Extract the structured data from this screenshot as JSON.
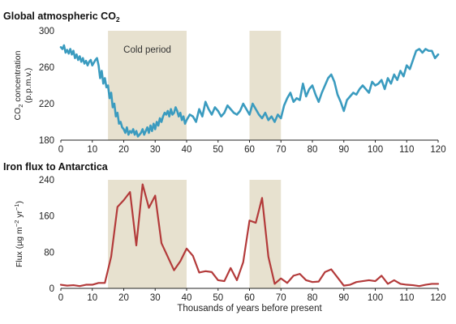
{
  "chart_data": [
    {
      "type": "line",
      "title": "Global atmospheric CO",
      "title_subscript": "2",
      "ylabel_lines": [
        "CO",
        "2",
        " concentration",
        "(p.p.m.v.)"
      ],
      "ylim": [
        180,
        300
      ],
      "yticks": [
        180,
        220,
        260,
        300
      ],
      "xlim": [
        0,
        120
      ],
      "xticks": [
        0,
        10,
        20,
        30,
        40,
        50,
        60,
        70,
        80,
        90,
        100,
        110,
        120
      ],
      "bands": [
        [
          15,
          40
        ],
        [
          60,
          70
        ]
      ],
      "annotation": "Cold period",
      "color": "#3a9bbf",
      "grid": false,
      "series": [
        {
          "x": [
            0,
            0.5,
            1,
            1.5,
            2,
            2.5,
            3,
            3.5,
            4,
            4.5,
            5,
            5.5,
            6,
            6.5,
            7,
            7.5,
            8,
            8.5,
            9,
            9.5,
            10,
            10.5,
            11,
            11.5,
            12,
            12.5,
            13,
            13.5,
            14,
            14.5,
            15,
            15.5,
            16,
            16.5,
            17,
            17.5,
            18,
            18.5,
            19,
            19.5,
            20,
            20.5,
            21,
            21.5,
            22,
            22.5,
            23,
            23.5,
            24,
            24.5,
            25,
            25.5,
            26,
            26.5,
            27,
            27.5,
            28,
            28.5,
            29,
            29.5,
            30,
            30.5,
            31,
            31.5,
            32,
            32.5,
            33,
            33.5,
            34,
            34.5,
            35,
            35.5,
            36,
            36.5,
            37,
            37.5,
            38,
            38.5,
            39,
            39.5,
            40,
            41,
            42,
            43,
            44,
            45,
            46,
            47,
            48,
            49,
            50,
            51,
            52,
            53,
            54,
            55,
            56,
            57,
            58,
            59,
            60,
            61,
            62,
            63,
            64,
            65,
            66,
            67,
            68,
            69,
            70,
            71,
            72,
            73,
            74,
            75,
            76,
            77,
            78,
            79,
            80,
            81,
            82,
            83,
            84,
            85,
            86,
            87,
            88,
            89,
            90,
            91,
            92,
            93,
            94,
            95,
            96,
            97,
            98,
            99,
            100,
            101,
            102,
            103,
            104,
            105,
            106,
            107,
            108,
            109,
            110,
            111,
            112,
            113,
            114,
            115,
            116,
            117,
            118,
            119,
            120
          ],
          "y": [
            282,
            280,
            284,
            276,
            279,
            275,
            280,
            274,
            278,
            270,
            274,
            268,
            272,
            266,
            270,
            264,
            267,
            262,
            266,
            268,
            262,
            265,
            268,
            270,
            262,
            248,
            256,
            242,
            248,
            238,
            240,
            226,
            232,
            216,
            220,
            206,
            210,
            198,
            200,
            194,
            192,
            188,
            194,
            186,
            190,
            188,
            192,
            186,
            190,
            184,
            186,
            188,
            192,
            186,
            190,
            194,
            188,
            196,
            190,
            198,
            192,
            200,
            196,
            204,
            200,
            206,
            210,
            208,
            212,
            206,
            214,
            208,
            210,
            216,
            212,
            206,
            210,
            202,
            206,
            198,
            202,
            208,
            206,
            200,
            214,
            206,
            222,
            214,
            208,
            216,
            212,
            206,
            210,
            218,
            214,
            210,
            208,
            212,
            220,
            214,
            208,
            220,
            214,
            208,
            204,
            210,
            202,
            206,
            200,
            208,
            204,
            218,
            226,
            232,
            222,
            226,
            224,
            242,
            228,
            236,
            240,
            230,
            222,
            232,
            240,
            248,
            252,
            244,
            230,
            222,
            212,
            224,
            228,
            232,
            230,
            236,
            240,
            236,
            232,
            244,
            240,
            242,
            246,
            236,
            248,
            242,
            252,
            246,
            256,
            250,
            262,
            258,
            268,
            278,
            280,
            276,
            280,
            278,
            278,
            270,
            274
          ]
        }
      ]
    },
    {
      "type": "line",
      "title": "Iron flux to Antarctica",
      "ylabel_parts": [
        "Flux (µg m",
        "−2",
        " yr",
        "−1",
        ")"
      ],
      "ylim": [
        0,
        240
      ],
      "yticks": [
        0,
        80,
        160,
        240
      ],
      "xlim": [
        0,
        120
      ],
      "xticks": [
        0,
        10,
        20,
        30,
        40,
        50,
        60,
        70,
        80,
        90,
        100,
        110,
        120
      ],
      "bands": [
        [
          15,
          40
        ],
        [
          60,
          70
        ]
      ],
      "xlabel": "Thousands of years before present",
      "color": "#b33a3a",
      "grid": false,
      "series": [
        {
          "x": [
            0,
            2,
            4,
            6,
            8,
            10,
            12,
            14,
            16,
            18,
            20,
            22,
            24,
            26,
            28,
            30,
            32,
            34,
            36,
            38,
            40,
            42,
            44,
            46,
            48,
            50,
            52,
            54,
            56,
            58,
            60,
            62,
            64,
            66,
            68,
            70,
            72,
            74,
            76,
            78,
            80,
            82,
            84,
            86,
            88,
            90,
            92,
            94,
            96,
            98,
            100,
            102,
            104,
            106,
            108,
            110,
            112,
            114,
            116,
            118,
            120
          ],
          "y": [
            8,
            6,
            7,
            5,
            8,
            8,
            12,
            12,
            70,
            180,
            195,
            213,
            95,
            230,
            178,
            205,
            100,
            70,
            40,
            60,
            88,
            72,
            35,
            38,
            36,
            18,
            16,
            45,
            18,
            58,
            150,
            145,
            200,
            70,
            10,
            22,
            12,
            28,
            32,
            18,
            14,
            15,
            36,
            42,
            24,
            6,
            8,
            14,
            16,
            18,
            16,
            28,
            10,
            18,
            10,
            8,
            7,
            5,
            8,
            10,
            10
          ]
        }
      ]
    }
  ]
}
